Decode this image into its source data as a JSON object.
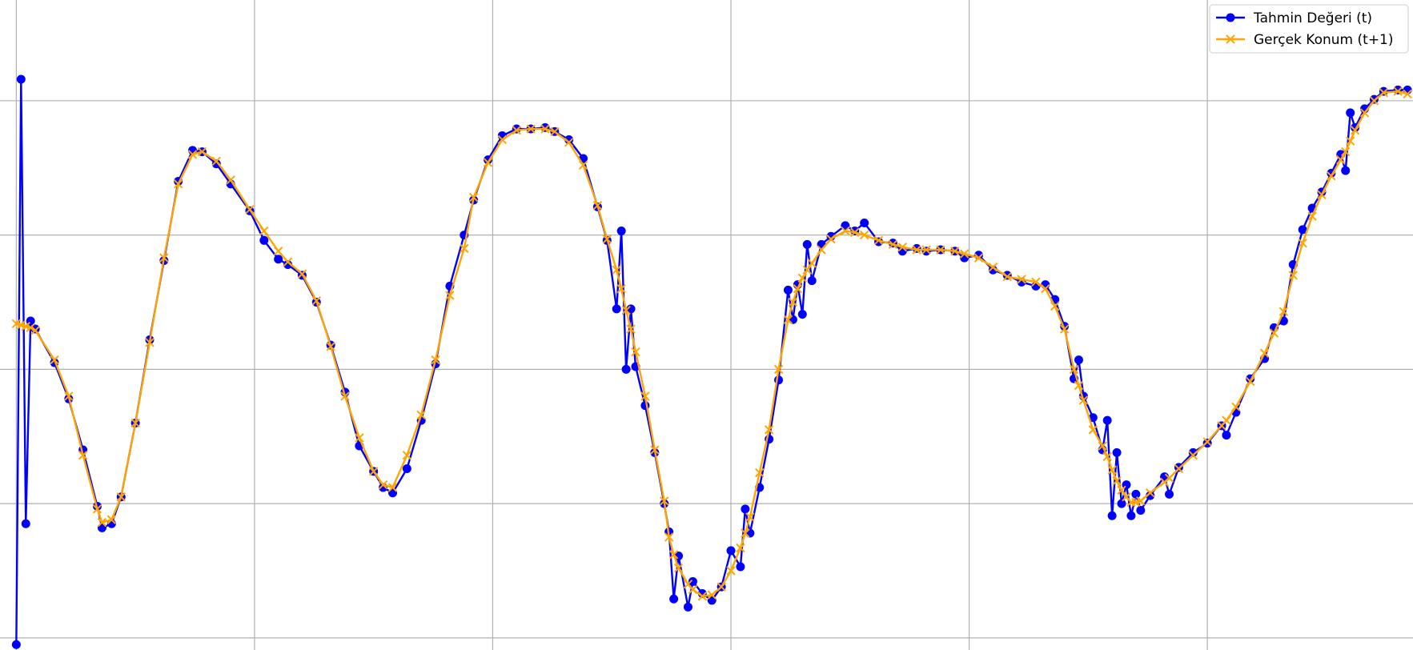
{
  "chart_data": {
    "type": "line",
    "x": [
      0,
      1,
      2,
      3,
      4,
      8,
      11,
      14,
      17,
      18,
      20,
      22,
      25,
      28,
      31,
      34,
      37,
      39,
      42,
      45,
      49,
      52,
      55,
      57,
      60,
      63,
      66,
      69,
      72,
      75,
      77,
      79,
      82,
      85,
      88,
      91,
      94,
      96,
      99,
      102,
      105,
      108,
      111,
      113,
      116,
      119,
      122,
      124,
      126,
      127,
      128,
      129,
      130,
      132,
      134,
      136,
      137,
      138,
      139,
      141,
      142,
      144,
      146,
      148,
      150,
      152,
      153,
      154,
      156,
      158,
      160,
      162,
      163,
      164,
      165,
      166,
      167,
      169,
      171,
      174,
      176,
      178,
      181,
      184,
      186,
      189,
      191,
      194,
      197,
      199,
      202,
      205,
      208,
      211,
      214,
      216,
      218,
      220,
      222,
      223,
      224,
      226,
      228,
      229,
      230,
      231,
      232,
      233,
      234,
      235,
      236,
      238,
      241,
      242,
      244,
      247,
      250,
      253,
      254,
      256,
      259,
      262,
      264,
      266,
      268,
      270,
      272,
      274,
      276,
      278,
      279,
      280,
      281,
      283,
      285,
      287,
      290,
      292
    ],
    "series": [
      {
        "name": "Tahmin Değeri (t)",
        "color": "#0000ff",
        "marker": "circle",
        "values": [
          -0.05,
          4.16,
          0.85,
          2.36,
          2.3,
          2.05,
          1.78,
          1.4,
          0.98,
          0.82,
          0.85,
          1.05,
          1.6,
          2.22,
          2.81,
          3.4,
          3.63,
          3.62,
          3.53,
          3.38,
          3.18,
          2.96,
          2.82,
          2.78,
          2.7,
          2.5,
          2.18,
          1.83,
          1.43,
          1.24,
          1.12,
          1.08,
          1.26,
          1.62,
          2.04,
          2.62,
          3.0,
          3.26,
          3.56,
          3.74,
          3.79,
          3.79,
          3.8,
          3.77,
          3.71,
          3.57,
          3.21,
          2.96,
          2.45,
          3.03,
          2.0,
          2.45,
          2.02,
          1.73,
          1.38,
          1.0,
          0.79,
          0.29,
          0.61,
          0.23,
          0.42,
          0.33,
          0.28,
          0.38,
          0.65,
          0.53,
          0.96,
          0.78,
          1.12,
          1.48,
          1.92,
          2.59,
          2.37,
          2.63,
          2.41,
          2.93,
          2.66,
          2.93,
          2.99,
          3.07,
          3.03,
          3.09,
          2.95,
          2.94,
          2.88,
          2.9,
          2.88,
          2.89,
          2.88,
          2.83,
          2.85,
          2.74,
          2.7,
          2.65,
          2.62,
          2.63,
          2.52,
          2.32,
          1.93,
          2.07,
          1.8,
          1.64,
          1.4,
          1.62,
          0.91,
          1.38,
          1.0,
          1.14,
          0.91,
          1.07,
          0.95,
          1.06,
          1.2,
          1.07,
          1.27,
          1.38,
          1.45,
          1.58,
          1.51,
          1.68,
          1.93,
          2.08,
          2.31,
          2.36,
          2.78,
          3.04,
          3.2,
          3.32,
          3.46,
          3.6,
          3.48,
          3.91,
          3.8,
          3.94,
          4.01,
          4.07,
          4.08,
          4.08
        ]
      },
      {
        "name": "Gerçek Konum (t+1)",
        "color": "#ffa500",
        "marker": "x",
        "values": [
          2.34,
          2.33,
          2.32,
          2.31,
          2.29,
          2.07,
          1.8,
          1.36,
          0.96,
          0.86,
          0.88,
          1.05,
          1.6,
          2.2,
          2.83,
          3.38,
          3.6,
          3.62,
          3.55,
          3.41,
          3.19,
          3.03,
          2.88,
          2.8,
          2.71,
          2.51,
          2.17,
          1.8,
          1.49,
          1.24,
          1.14,
          1.12,
          1.36,
          1.66,
          2.07,
          2.55,
          2.9,
          3.28,
          3.54,
          3.71,
          3.78,
          3.79,
          3.79,
          3.77,
          3.69,
          3.52,
          3.22,
          2.97,
          2.74,
          2.6,
          2.44,
          2.3,
          2.13,
          1.8,
          1.4,
          1.02,
          0.75,
          0.62,
          0.52,
          0.4,
          0.36,
          0.31,
          0.32,
          0.38,
          0.5,
          0.67,
          0.78,
          0.9,
          1.23,
          1.55,
          2.0,
          2.37,
          2.5,
          2.6,
          2.68,
          2.74,
          2.79,
          2.89,
          2.97,
          3.03,
          3.02,
          3.0,
          2.96,
          2.93,
          2.91,
          2.89,
          2.89,
          2.89,
          2.88,
          2.86,
          2.83,
          2.76,
          2.69,
          2.67,
          2.65,
          2.6,
          2.47,
          2.3,
          2.0,
          1.88,
          1.77,
          1.55,
          1.43,
          1.35,
          1.25,
          1.17,
          1.1,
          1.05,
          1.01,
          1.01,
          1.02,
          1.08,
          1.16,
          1.19,
          1.26,
          1.36,
          1.46,
          1.58,
          1.62,
          1.72,
          1.91,
          2.12,
          2.27,
          2.43,
          2.7,
          2.94,
          3.14,
          3.3,
          3.44,
          3.56,
          3.62,
          3.7,
          3.78,
          3.91,
          4.0,
          4.06,
          4.07,
          4.05
        ]
      }
    ],
    "xlim": [
      -3.42,
      293.16
    ],
    "ylim": [
      -0.09,
      4.75
    ],
    "xticks": [
      0,
      50,
      100,
      150,
      200,
      250
    ],
    "yticks": [
      0,
      1,
      2,
      3,
      4
    ],
    "grid": true,
    "legend": "upper right"
  }
}
